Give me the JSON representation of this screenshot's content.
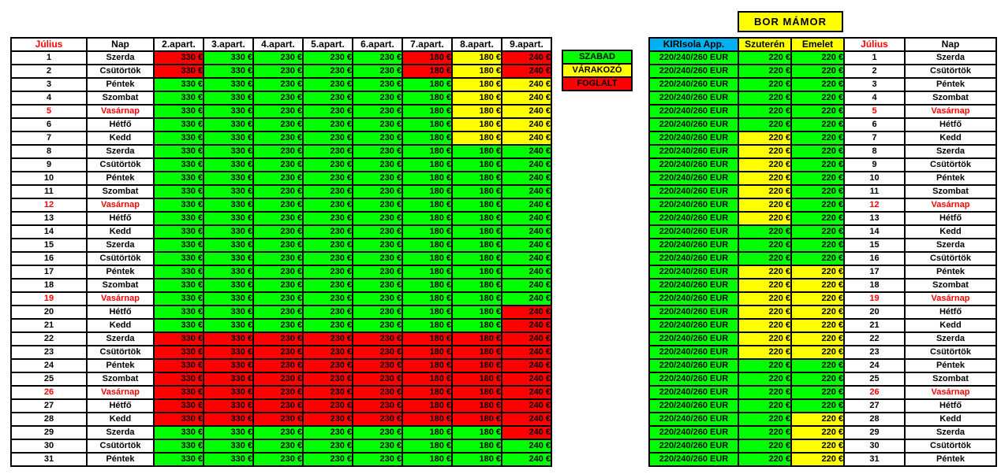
{
  "colors": {
    "free_green": "#00FF00",
    "waiting_yellow": "#FFFF00",
    "booked_red": "#FF0000",
    "sunday_text_red": "#FF0000",
    "app_header_blue": "#00B0F0",
    "grid_border_black": "#000000"
  },
  "legend": {
    "items": [
      {
        "label": "SZABAD",
        "status": "G"
      },
      {
        "label": "VÁRAKOZÓ",
        "status": "Y"
      },
      {
        "label": "FOGLALT",
        "status": "R"
      }
    ]
  },
  "days": [
    {
      "n": "1",
      "name": "Szerda",
      "sunday": false
    },
    {
      "n": "2",
      "name": "Csütörtök",
      "sunday": false
    },
    {
      "n": "3",
      "name": "Péntek",
      "sunday": false
    },
    {
      "n": "4",
      "name": "Szombat",
      "sunday": false
    },
    {
      "n": "5",
      "name": "Vasárnap",
      "sunday": true
    },
    {
      "n": "6",
      "name": "Hétfő",
      "sunday": false
    },
    {
      "n": "7",
      "name": "Kedd",
      "sunday": false
    },
    {
      "n": "8",
      "name": "Szerda",
      "sunday": false
    },
    {
      "n": "9",
      "name": "Csütörtök",
      "sunday": false
    },
    {
      "n": "10",
      "name": "Péntek",
      "sunday": false
    },
    {
      "n": "11",
      "name": "Szombat",
      "sunday": false
    },
    {
      "n": "12",
      "name": "Vasárnap",
      "sunday": true
    },
    {
      "n": "13",
      "name": "Hétfő",
      "sunday": false
    },
    {
      "n": "14",
      "name": "Kedd",
      "sunday": false
    },
    {
      "n": "15",
      "name": "Szerda",
      "sunday": false
    },
    {
      "n": "16",
      "name": "Csütörtök",
      "sunday": false
    },
    {
      "n": "17",
      "name": "Péntek",
      "sunday": false
    },
    {
      "n": "18",
      "name": "Szombat",
      "sunday": false
    },
    {
      "n": "19",
      "name": "Vasárnap",
      "sunday": true
    },
    {
      "n": "20",
      "name": "Hétfő",
      "sunday": false
    },
    {
      "n": "21",
      "name": "Kedd",
      "sunday": false
    },
    {
      "n": "22",
      "name": "Szerda",
      "sunday": false
    },
    {
      "n": "23",
      "name": "Csütörtök",
      "sunday": false
    },
    {
      "n": "24",
      "name": "Péntek",
      "sunday": false
    },
    {
      "n": "25",
      "name": "Szombat",
      "sunday": false
    },
    {
      "n": "26",
      "name": "Vasárnap",
      "sunday": true
    },
    {
      "n": "27",
      "name": "Hétfő",
      "sunday": false
    },
    {
      "n": "28",
      "name": "Kedd",
      "sunday": false
    },
    {
      "n": "29",
      "name": "Szerda",
      "sunday": false
    },
    {
      "n": "30",
      "name": "Csütörtök",
      "sunday": false
    },
    {
      "n": "31",
      "name": "Péntek",
      "sunday": false
    }
  ],
  "left_table": {
    "headers": [
      "Július",
      "Nap",
      "2.apart.",
      "3.apart.",
      "4.apart.",
      "5.apart.",
      "6.apart.",
      "7.apart.",
      "8.apart.",
      "9.apart."
    ],
    "prices": [
      "330 €",
      "330 €",
      "230 €",
      "230 €",
      "230 €",
      "180 €",
      "180 €",
      "240 €"
    ],
    "status": [
      "RGGGGRYR",
      "RGGGGRYR",
      "GGGGGGYY",
      "GGGGGGYY",
      "GGGGGGYY",
      "GGGGGGYY",
      "GGGGGGYY",
      "GGGGGGGG",
      "GGGGGGGG",
      "GGGGGGGG",
      "GGGGGGGG",
      "GGGGGGGG",
      "GGGGGGGG",
      "GGGGGGGG",
      "GGGGGGGG",
      "GGGGGGGG",
      "GGGGGGGG",
      "GGGGGGGG",
      "GGGGGGGG",
      "GGGGGGGR",
      "GGGGGGGR",
      "RRRRRRRR",
      "RRRRRRRR",
      "RRRRRRRR",
      "RRRRRRRR",
      "RRRRRRRR",
      "RRRRRRRR",
      "RRRRRRRR",
      "GGGGGGGR",
      "GGGGGGGG",
      "GGGGGGGG"
    ]
  },
  "right_table": {
    "group_title": "BOR  MÁMOR",
    "headers": [
      "KIRIsola App.",
      "Szuterén",
      "Emelet",
      "Július",
      "Nap"
    ],
    "app_price": "220/240/260 EUR",
    "room_price": "220 €",
    "status": [
      "GG",
      "GG",
      "GG",
      "GG",
      "GG",
      "GG",
      "YG",
      "YG",
      "YG",
      "YG",
      "YG",
      "YG",
      "YG",
      "GG",
      "GG",
      "GG",
      "YY",
      "YY",
      "YY",
      "YY",
      "YY",
      "YY",
      "YY",
      "GG",
      "GG",
      "GG",
      "GG",
      "GY",
      "GY",
      "GY",
      "GY"
    ]
  }
}
